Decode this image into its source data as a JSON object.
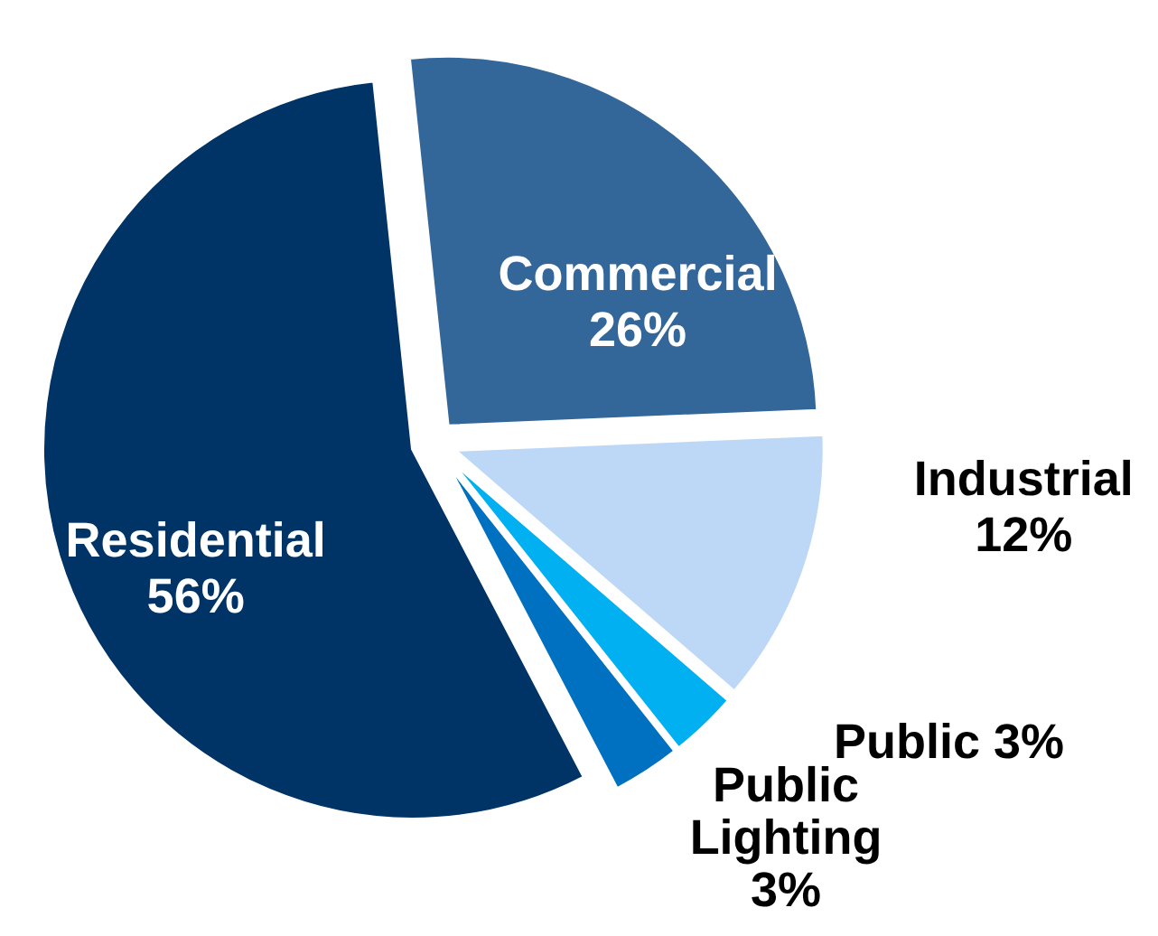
{
  "chart_data": {
    "type": "pie",
    "categories": [
      "Commercial",
      "Industrial",
      "Public",
      "Public Lighting",
      "Residential"
    ],
    "values": [
      26,
      12,
      3,
      3,
      56
    ],
    "colors": [
      "#336699",
      "#bdd7f7",
      "#00b0f0",
      "#0070c0",
      "#003366"
    ],
    "value_labels": [
      "26%",
      "12%",
      "3%",
      "3%",
      "56%"
    ]
  }
}
